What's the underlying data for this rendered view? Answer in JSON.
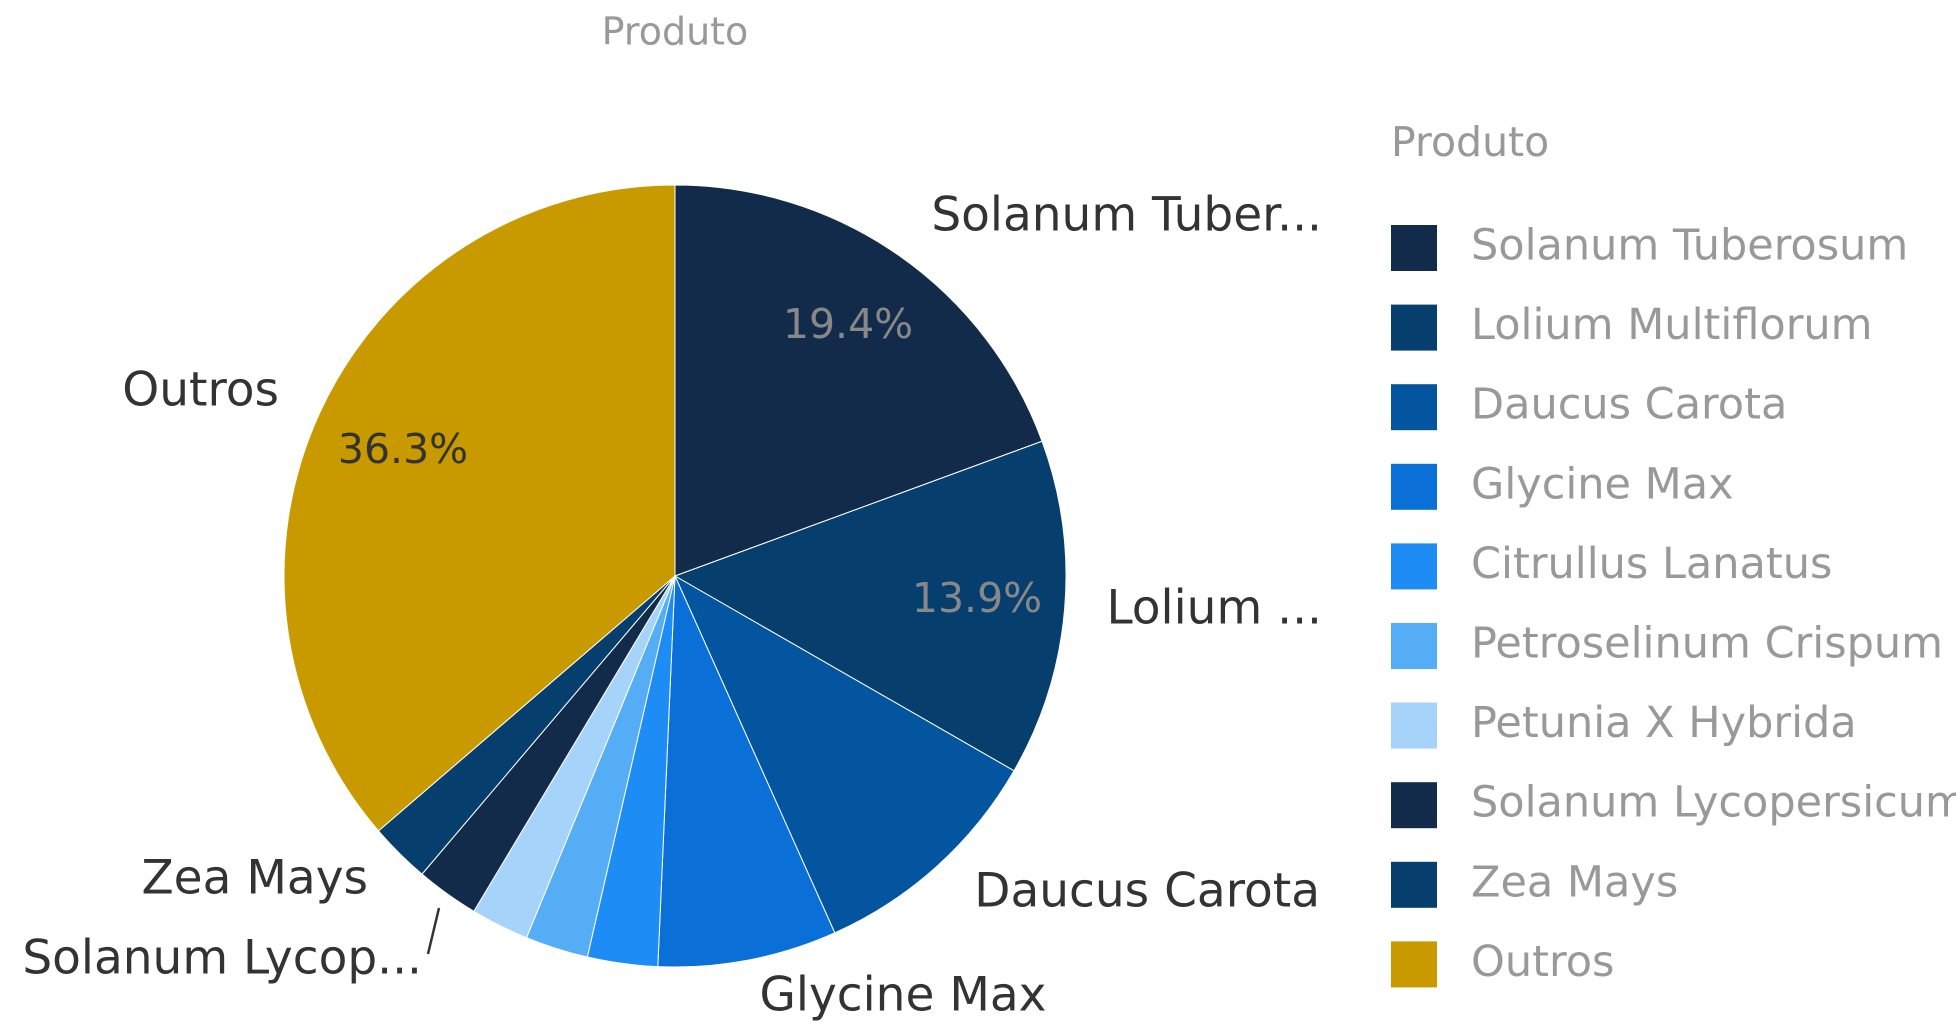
{
  "chart_data": {
    "type": "pie",
    "title": "Produto",
    "legend_title": "Produto",
    "categories": [
      "Solanum Tuberosum",
      "Lolium Multiflorum",
      "Daucus Carota",
      "Glycine Max",
      "Citrullus Lanatus",
      "Petroselinum Crispum",
      "Petunia X Hybrida",
      "Solanum Lycopersicum",
      "Zea Mays",
      "Outros"
    ],
    "values": [
      19.4,
      13.9,
      10.0,
      7.4,
      2.9,
      2.6,
      2.4,
      2.6,
      2.5,
      36.3
    ],
    "value_labels": [
      "19.4%",
      "13.9%",
      null,
      null,
      null,
      null,
      null,
      null,
      null,
      "36.3%"
    ],
    "slice_labels": [
      "Solanum Tuber...",
      "Lolium ...",
      "Daucus Carota",
      "Glycine Max",
      null,
      null,
      null,
      "Solanum Lycop...",
      "Zea Mays",
      "Outros"
    ],
    "colors": [
      "#122b4a",
      "#063f6e",
      "#0455a0",
      "#0a6fd6",
      "#1e8cf5",
      "#55aef5",
      "#a5d3fa",
      "#122b4a",
      "#063f6e",
      "#c99a00"
    ],
    "legend": "right"
  }
}
